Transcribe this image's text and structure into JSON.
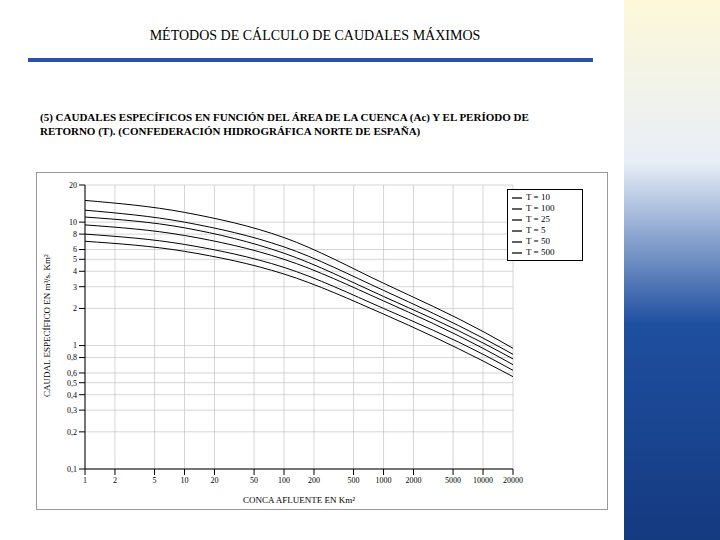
{
  "chart_data": {
    "type": "line",
    "title": "MÉTODOS DE CÁLCULO DE CAUDALES MÁXIMOS",
    "subtitle": "(5) CAUDALES ESPECÍFICOS EN FUNCIÓN DEL ÁREA DE LA CUENCA (Ac) Y EL PERÍODO DE RETORNO (T). (CONFEDERACIÓN HIDROGRÁFICA NORTE DE ESPAÑA)",
    "x_label": "CONCA AFLUENTE EN Km²",
    "y_label": "CAUDAL ESPECÍFICO EN m³/s. Km²",
    "x": [
      1,
      10,
      100,
      1000,
      10000,
      20000
    ],
    "series": [
      {
        "name": "T = 500",
        "color": "#000000",
        "values": [
          15,
          12,
          7.5,
          3.2,
          1.3,
          0.95
        ]
      },
      {
        "name": "T = 100",
        "color": "#000000",
        "values": [
          12.5,
          10,
          6.3,
          2.8,
          1.15,
          0.85
        ]
      },
      {
        "name": "T = 50",
        "color": "#000000",
        "values": [
          11,
          9,
          5.6,
          2.5,
          1.05,
          0.78
        ]
      },
      {
        "name": "T = 25",
        "color": "#000000",
        "values": [
          9.5,
          7.8,
          5,
          2.3,
          0.95,
          0.7
        ]
      },
      {
        "name": "T = 10",
        "color": "#000000",
        "values": [
          8,
          6.6,
          4.3,
          2,
          0.85,
          0.63
        ]
      },
      {
        "name": "T = 5",
        "color": "#000000",
        "values": [
          7,
          5.8,
          3.8,
          1.8,
          0.75,
          0.56
        ]
      }
    ],
    "xlim": [
      1,
      20000
    ],
    "xticks": [
      1,
      2,
      5,
      10,
      20,
      50,
      100,
      200,
      500,
      1000,
      2000,
      5000,
      10000,
      20000
    ],
    "ylim": [
      0.1,
      20
    ],
    "yticks": [
      {
        "value": 0.1,
        "label": "0,1"
      },
      {
        "value": 0.2,
        "label": "0,2"
      },
      {
        "value": 0.3,
        "label": "0,3"
      },
      {
        "value": 0.4,
        "label": "0,4"
      },
      {
        "value": 0.5,
        "label": "0,5"
      },
      {
        "value": 0.6,
        "label": "0,6"
      },
      {
        "value": 0.8,
        "label": "0,8"
      },
      1,
      2,
      3,
      4,
      5,
      6,
      8,
      10,
      20
    ],
    "log": true,
    "grid": true,
    "legend": "upper right"
  }
}
